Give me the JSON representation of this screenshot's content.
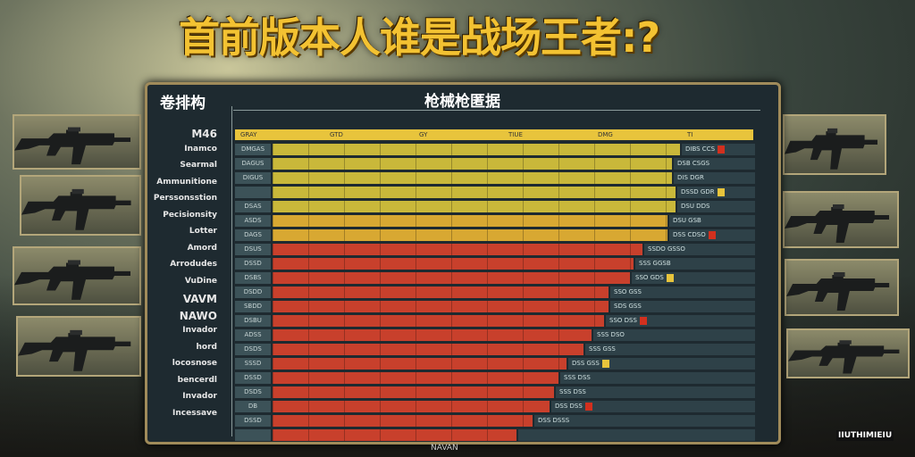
{
  "title": "首前版本人谁是战场王者:?",
  "panel": {
    "left_title": "卷排构",
    "table_title": "枪械枪匿据",
    "header_cells": [
      "GRAY",
      "GTD",
      "GY",
      "TIUE",
      "DMG",
      "TI"
    ],
    "footer": "NAVAN"
  },
  "watermark": "IIUTHIMIEIU",
  "left_labels": [
    {
      "text": "M46",
      "big": true
    },
    {
      "text": "Inamco"
    },
    {
      "text": "Searmal"
    },
    {
      "text": "Ammunitione"
    },
    {
      "text": "Perssonsstion"
    },
    {
      "text": "Pecisionsity"
    },
    {
      "text": "Lotter"
    },
    {
      "text": "Amord"
    },
    {
      "text": "Arrodudes"
    },
    {
      "text": "VuDine"
    },
    {
      "text": "VAVM",
      "big": true
    },
    {
      "text": "NAWO",
      "big": true
    },
    {
      "text": "Invador"
    },
    {
      "text": "hord"
    },
    {
      "text": "locosnose"
    },
    {
      "text": "bencerdl"
    },
    {
      "text": "Invador"
    },
    {
      "text": "Incessave"
    }
  ],
  "colors": {
    "yellow": "#c9b83a",
    "gold": "#d8a832",
    "red": "#c8402c",
    "accent": "#f3c232"
  },
  "rows": [
    {
      "label": "DMGAS",
      "value": 0.97,
      "color": "yellow",
      "vals": "DIBS  CCS"
    },
    {
      "label": "DAGUS",
      "value": 0.95,
      "color": "yellow",
      "vals": "DSB  CSGS"
    },
    {
      "label": "DIGUS",
      "value": 0.95,
      "color": "yellow",
      "vals": "DIS  DGR"
    },
    {
      "label": "",
      "value": 0.96,
      "color": "yellow",
      "vals": "DSSD  GDR"
    },
    {
      "label": "DSAS",
      "value": 0.96,
      "color": "yellow",
      "vals": "DSU  DDS"
    },
    {
      "label": "ASDS",
      "value": 0.94,
      "color": "gold",
      "vals": "DSU  GSB"
    },
    {
      "label": "DAGS",
      "value": 0.94,
      "color": "gold",
      "vals": "DSS  CDSO"
    },
    {
      "label": "DSUS",
      "value": 0.88,
      "color": "red",
      "vals": "SSDO  GSSO"
    },
    {
      "label": "DSSD",
      "value": 0.86,
      "color": "red",
      "vals": "SSS  GGSB"
    },
    {
      "label": "DSBS",
      "value": 0.85,
      "color": "red",
      "vals": "SSO  GDS"
    },
    {
      "label": "DSDD",
      "value": 0.8,
      "color": "red",
      "vals": "SSO  GSS"
    },
    {
      "label": "SBDD",
      "value": 0.8,
      "color": "red",
      "vals": "SDS  GSS"
    },
    {
      "label": "DSBU",
      "value": 0.79,
      "color": "red",
      "vals": "SSO  DSS"
    },
    {
      "label": "ADSS",
      "value": 0.76,
      "color": "red",
      "vals": "SSS  DSO"
    },
    {
      "label": "DSDS",
      "value": 0.74,
      "color": "red",
      "vals": "SSS  GSS"
    },
    {
      "label": "SSSD",
      "value": 0.7,
      "color": "red",
      "vals": "DSS  GSS"
    },
    {
      "label": "DSSD",
      "value": 0.68,
      "color": "red",
      "vals": "SSS  DSS"
    },
    {
      "label": "DSDS",
      "value": 0.67,
      "color": "red",
      "vals": "SSS  DSS"
    },
    {
      "label": "DB",
      "value": 0.66,
      "color": "red",
      "vals": "DSS  DSS"
    },
    {
      "label": "DSSD",
      "value": 0.62,
      "color": "red",
      "vals": "DSS  DSSS"
    },
    {
      "label": "",
      "value": 0.58,
      "color": "red",
      "vals": ""
    }
  ]
}
